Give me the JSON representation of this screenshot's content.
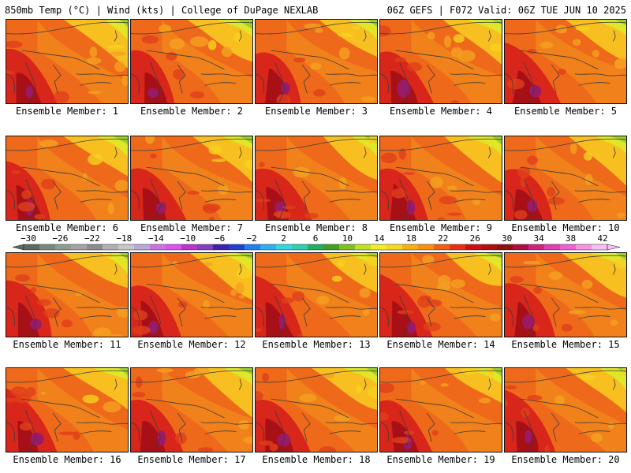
{
  "header": {
    "left": "850mb Temp (°C) | Wind (kts) | College of DuPage NEXLAB",
    "right": "06Z GEFS | F072 Valid: 06Z TUE JUN 10 2025"
  },
  "members": [
    {
      "label": "Ensemble Member: 1"
    },
    {
      "label": "Ensemble Member: 2"
    },
    {
      "label": "Ensemble Member: 3"
    },
    {
      "label": "Ensemble Member: 4"
    },
    {
      "label": "Ensemble Member: 5"
    },
    {
      "label": "Ensemble Member: 6"
    },
    {
      "label": "Ensemble Member: 7"
    },
    {
      "label": "Ensemble Member: 8"
    },
    {
      "label": "Ensemble Member: 9"
    },
    {
      "label": "Ensemble Member: 10"
    },
    {
      "label": "Ensemble Member: 11"
    },
    {
      "label": "Ensemble Member: 12"
    },
    {
      "label": "Ensemble Member: 13"
    },
    {
      "label": "Ensemble Member: 14"
    },
    {
      "label": "Ensemble Member: 15"
    },
    {
      "label": "Ensemble Member: 16"
    },
    {
      "label": "Ensemble Member: 17"
    },
    {
      "label": "Ensemble Member: 18"
    },
    {
      "label": "Ensemble Member: 19"
    },
    {
      "label": "Ensemble Member: 20"
    }
  ],
  "colorbar": {
    "ticks": [
      "-30",
      "-26",
      "-22",
      "-18",
      "-14",
      "-10",
      "-6",
      "-2",
      "2",
      "6",
      "10",
      "14",
      "18",
      "22",
      "26",
      "30",
      "34",
      "38",
      "42"
    ],
    "colors": [
      "#5c6b5c",
      "#7a8a7a",
      "#8e9e8e",
      "#a3a3a3",
      "#8c8c8c",
      "#b0b0b0",
      "#c8c8c8",
      "#b8a8d8",
      "#d070e0",
      "#e050f0",
      "#c030d0",
      "#8040c0",
      "#4020b0",
      "#2040d0",
      "#2080f0",
      "#30b0f0",
      "#30d8e0",
      "#30d0b0",
      "#20b060",
      "#40a020",
      "#80c020",
      "#c0e020",
      "#f0f020",
      "#f8d820",
      "#f8b010",
      "#f89010",
      "#f06010",
      "#e83010",
      "#d01010",
      "#b01010",
      "#901010",
      "#b01040",
      "#d02080",
      "#e040b0",
      "#f060d0",
      "#f890e0",
      "#f8c0f0"
    ]
  }
}
